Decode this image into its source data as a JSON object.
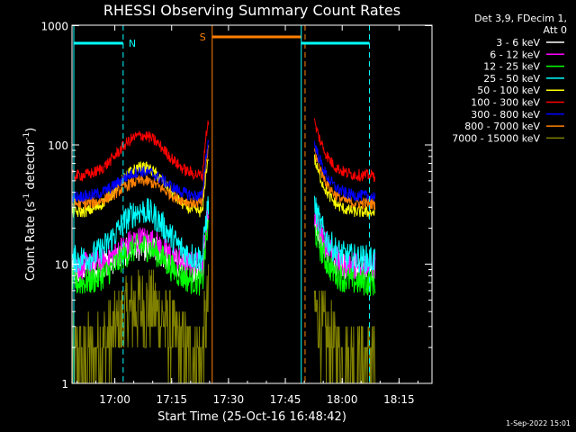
{
  "chart_data": {
    "type": "line",
    "title": "RHESSI Observing Summary Count Rates",
    "xlabel": "Start Time (25-Oct-16 16:48:42)",
    "ylabel_main": "Count Rate (s",
    "ylabel_sup1": "-1",
    "ylabel_mid": " detector",
    "ylabel_sup2": "-1",
    "ylabel_end": ")",
    "y_scale": "log",
    "ylim": [
      1,
      1000
    ],
    "xlim_minutes_since_16_48_42": [
      0,
      75.3
    ],
    "x_ticks": [
      "17:00",
      "17:15",
      "17:30",
      "17:45",
      "18:00",
      "18:15"
    ],
    "x_tick_minutes": [
      11.3,
      26.3,
      41.3,
      56.3,
      71.3,
      86.3
    ],
    "y_ticks": [
      "1",
      "10",
      "100",
      "1000"
    ],
    "y_tick_values": [
      1,
      10,
      100,
      1000
    ],
    "legend_header": [
      "Det 3,9, FDecim 1,",
      "Att 0"
    ],
    "legend_placement": "right, outside",
    "series": [
      {
        "name": "3 - 6 keV",
        "color": "#ffffff",
        "base": 9,
        "peak": 14
      },
      {
        "name": "6 - 12 keV",
        "color": "#ff00ff",
        "base": 9.5,
        "peak": 16
      },
      {
        "name": "12 - 25 keV",
        "color": "#00ff00",
        "base": 7,
        "peak": 14
      },
      {
        "name": "25 - 50 keV",
        "color": "#00ffff",
        "base": 11,
        "peak": 28
      },
      {
        "name": "50 - 100 keV",
        "color": "#ffff00",
        "base": 27,
        "peak": 65
      },
      {
        "name": "100 - 300 keV",
        "color": "#ff0000",
        "base": 55,
        "peak": 120
      },
      {
        "name": "300 - 800 keV",
        "color": "#0000ff",
        "base": 37,
        "peak": 60
      },
      {
        "name": "800 - 7000 keV",
        "color": "#ff8000",
        "base": 32,
        "peak": 50
      },
      {
        "name": "7000 - 15000 keV",
        "color": "#808000",
        "base": 1.6,
        "peak": 4.5
      }
    ],
    "annotations": {
      "night_label": "N",
      "saa_label": "S",
      "night_color": "#00ffff",
      "saa_color": "#ff8000"
    },
    "timestamp": "1-Sep-2022 15:01"
  }
}
